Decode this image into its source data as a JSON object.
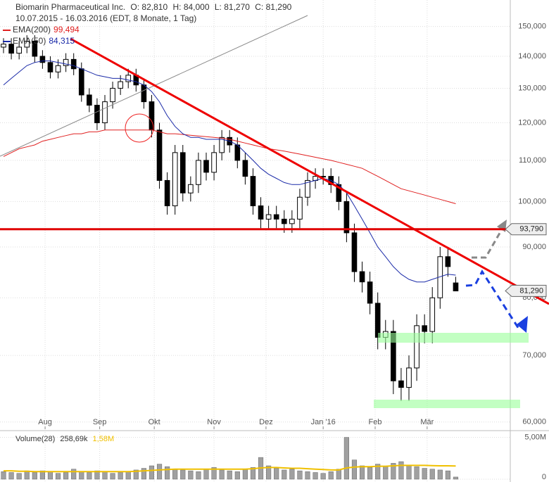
{
  "chart_data": [
    {
      "type": "candlestick",
      "title": "Biomarin Pharmaceutical Inc.",
      "quote": [
        "O: 82,810",
        "H: 84,000",
        "L: 81,270",
        "C: 81,290"
      ],
      "subtitle": "10.07.2015 - 16.03.2016 (EDT, 8 Monate, 1 Tag)",
      "x": [
        0,
        3,
        6,
        9,
        12,
        15,
        18,
        21,
        24,
        27,
        30,
        33,
        36,
        39,
        42,
        45,
        48,
        51,
        54,
        57,
        60,
        63,
        66,
        69,
        72,
        75,
        78,
        81,
        84,
        87,
        90,
        93,
        96,
        99,
        102,
        105,
        108,
        111,
        114,
        117,
        120,
        123,
        126,
        129,
        132,
        135,
        138,
        141,
        144,
        147,
        150,
        153,
        156,
        159,
        162,
        165,
        168,
        171,
        174
      ],
      "open": [
        143,
        144,
        141,
        143,
        145,
        140,
        138,
        135,
        137,
        139,
        136,
        128,
        125,
        120,
        126,
        130,
        132,
        134,
        131,
        126,
        118,
        105,
        99,
        112,
        102,
        104,
        110,
        107,
        112,
        116,
        114,
        110,
        106,
        99,
        96,
        97,
        96,
        95,
        96,
        101,
        105,
        106,
        106,
        104,
        100,
        93,
        85,
        83,
        79,
        73,
        74,
        66,
        65,
        68,
        75,
        74,
        80,
        88,
        82.81
      ],
      "high": [
        146,
        146,
        145,
        147,
        147,
        142,
        140,
        139,
        141,
        141,
        138,
        130,
        127,
        128,
        132,
        134,
        136,
        136,
        133,
        128,
        120,
        107,
        114,
        114,
        106,
        112,
        112,
        114,
        118,
        118,
        116,
        112,
        108,
        101,
        99,
        99,
        98,
        98,
        103,
        107,
        108,
        108,
        108,
        106,
        102,
        95,
        87,
        85,
        81,
        76,
        76,
        68,
        70,
        77,
        77,
        82,
        90,
        90,
        84
      ],
      "low": [
        141,
        139,
        139,
        141,
        138,
        136,
        133,
        133,
        135,
        134,
        126,
        123,
        118,
        118,
        124,
        128,
        130,
        129,
        124,
        116,
        103,
        97,
        97,
        100,
        100,
        102,
        105,
        105,
        110,
        112,
        108,
        104,
        97,
        94,
        94,
        94,
        93,
        93,
        94,
        99,
        103,
        104,
        102,
        98,
        91,
        83,
        81,
        77,
        71,
        71,
        64,
        63,
        63,
        66,
        72,
        72,
        78,
        84,
        81.27
      ],
      "close": [
        144,
        141,
        143,
        145,
        140,
        138,
        135,
        137,
        139,
        136,
        128,
        125,
        120,
        126,
        130,
        132,
        134,
        131,
        126,
        118,
        105,
        99,
        112,
        102,
        104,
        110,
        107,
        112,
        116,
        114,
        110,
        106,
        99,
        96,
        97,
        96,
        95,
        96,
        101,
        105,
        106,
        106,
        104,
        100,
        93,
        85,
        83,
        79,
        73,
        74,
        66,
        65,
        68,
        75,
        74,
        80,
        88,
        86,
        81.29
      ],
      "up_color": "#ffffff",
      "down_color": "#000000",
      "series": [
        {
          "name": "EMA(200)",
          "legend_label": "99,494",
          "color": "#e02020",
          "values": [
            111,
            112,
            113,
            113.5,
            114,
            115,
            115.5,
            116,
            116.5,
            117,
            117,
            117.5,
            117.5,
            118,
            118,
            118,
            118,
            118,
            118,
            118,
            117.5,
            117,
            117,
            116.8,
            116.6,
            116.4,
            116.2,
            116,
            115.8,
            115.5,
            115,
            114.5,
            114,
            113.5,
            113,
            112.7,
            112.4,
            112,
            111.6,
            111.2,
            110.8,
            110.4,
            110,
            109.5,
            109,
            108.5,
            108,
            107,
            106,
            105,
            104,
            103,
            102.5,
            102,
            101.5,
            101,
            100.5,
            100,
            99.494
          ]
        },
        {
          "name": "EMA(50)",
          "legend_label": "84,315",
          "color": "#1a2aa8",
          "values": [
            131,
            133,
            135,
            137,
            138,
            138.5,
            138.5,
            138,
            137.5,
            137,
            136,
            135,
            134,
            133.5,
            133,
            133,
            132.5,
            132,
            131,
            129,
            126,
            122,
            119,
            117,
            116,
            116,
            115.5,
            115.5,
            115.5,
            115,
            114,
            112,
            110,
            108,
            106.5,
            105.5,
            104.5,
            104,
            104,
            104.5,
            105,
            105.5,
            105,
            104,
            102,
            99,
            96,
            93,
            90,
            88,
            86,
            84.5,
            83.5,
            83,
            83,
            83.5,
            84,
            84.5,
            84.315
          ]
        }
      ],
      "last_label": "81,290",
      "levels": [
        {
          "value": 93.79,
          "label": "93,790",
          "color": "#e00000"
        }
      ],
      "log_scale": true,
      "xlim": [
        0,
        195
      ],
      "xticks": [
        {
          "value": 16,
          "label": "Aug"
        },
        {
          "value": 37,
          "label": "Sep"
        },
        {
          "value": 58,
          "label": "Okt"
        },
        {
          "value": 81,
          "label": "Nov"
        },
        {
          "value": 101,
          "label": "Dez"
        },
        {
          "value": 123,
          "label": "Jan '16"
        },
        {
          "value": 143,
          "label": "Feb"
        },
        {
          "value": 163,
          "label": "Mär"
        }
      ],
      "ylim": [
        59,
        159.5
      ],
      "yticks": [
        {
          "value": 60,
          "label": "60,000"
        },
        {
          "value": 70,
          "label": "70,000"
        },
        {
          "value": 80,
          "label": "80,000"
        },
        {
          "value": 90,
          "label": "90,000"
        },
        {
          "value": 100,
          "label": "100,000"
        },
        {
          "value": 110,
          "label": "110,000"
        },
        {
          "value": 120,
          "label": "120,000"
        },
        {
          "value": 130,
          "label": "130,000"
        },
        {
          "value": 140,
          "label": "140,000"
        },
        {
          "value": 150,
          "label": "150,000"
        }
      ],
      "grid": true
    },
    {
      "type": "bar",
      "title": "Volume(28)",
      "legend_label": "258,69k",
      "color": "#a0a0a0",
      "values": [
        0.9,
        0.8,
        0.7,
        1.0,
        0.8,
        1.0,
        0.9,
        0.7,
        0.8,
        1.2,
        0.9,
        0.8,
        1.0,
        0.9,
        0.7,
        0.8,
        0.9,
        1.1,
        1.3,
        1.6,
        1.8,
        1.5,
        1.2,
        1.1,
        1.0,
        0.9,
        1.2,
        1.4,
        1.1,
        1.0,
        0.9,
        1.2,
        1.4,
        2.6,
        1.6,
        1.3,
        1.1,
        1.2,
        1.0,
        0.9,
        0.8,
        0.7,
        0.9,
        1.2,
        5.0,
        2.3,
        1.6,
        1.4,
        1.8,
        1.5,
        1.9,
        2.1,
        1.7,
        1.5,
        1.3,
        1.2,
        1.1,
        1.0,
        0.25869
      ],
      "series": [
        {
          "legend_label": "1,58M",
          "color": "#f0c000",
          "values": [
            1.0,
            1.0,
            0.95,
            0.95,
            0.9,
            0.9,
            0.9,
            0.9,
            0.9,
            0.9,
            0.9,
            0.9,
            0.9,
            0.9,
            0.9,
            0.9,
            0.9,
            0.95,
            1.0,
            1.05,
            1.1,
            1.15,
            1.2,
            1.2,
            1.2,
            1.2,
            1.2,
            1.2,
            1.2,
            1.2,
            1.2,
            1.2,
            1.25,
            1.35,
            1.4,
            1.4,
            1.35,
            1.3,
            1.3,
            1.25,
            1.2,
            1.15,
            1.1,
            1.1,
            1.35,
            1.45,
            1.5,
            1.5,
            1.55,
            1.55,
            1.6,
            1.65,
            1.65,
            1.65,
            1.65,
            1.62,
            1.6,
            1.6,
            1.58
          ]
        }
      ],
      "ylim": [
        0,
        5.3
      ],
      "yticks": [
        0,
        {
          "value": 5,
          "label": "5,00M"
        }
      ],
      "grid": true
    }
  ]
}
